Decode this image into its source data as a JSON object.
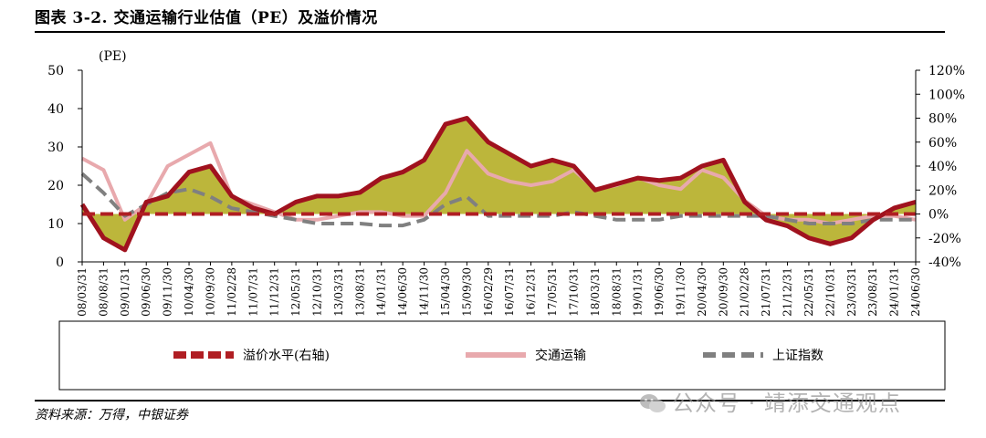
{
  "title": "图表 3-2. 交通运输行业估值（PE）及溢价情况",
  "source": "资料来源：万得，中银证券",
  "watermark": "公众号 · 靖添交通观点",
  "colors": {
    "premium_line": "#a0121e",
    "premium_fill": "#b6b02a",
    "premium_legend": "#b01e23",
    "transport": "#e8a9ad",
    "sse": "#808080",
    "text": "#000000"
  },
  "chart_data": {
    "type": "line",
    "left_axis_unit": "(PE)",
    "left_ylim": [
      0,
      50
    ],
    "left_yticks": [
      "0",
      "10",
      "20",
      "30",
      "40",
      "50"
    ],
    "right_ylim": [
      -40,
      120
    ],
    "right_yticks": [
      "-40%",
      "-20%",
      "0%",
      "20%",
      "40%",
      "60%",
      "80%",
      "100%",
      "120%"
    ],
    "x_ticklabels": [
      "08/03/31",
      "08/08/31",
      "09/01/31",
      "09/06/30",
      "09/11/30",
      "10/04/30",
      "10/09/30",
      "11/02/28",
      "11/07/31",
      "11/12/31",
      "12/05/31",
      "12/10/31",
      "13/03/31",
      "13/08/31",
      "14/01/31",
      "14/06/30",
      "14/11/30",
      "15/04/30",
      "15/09/30",
      "16/02/29",
      "16/07/31",
      "16/12/31",
      "17/05/31",
      "17/10/31",
      "18/03/31",
      "18/08/31",
      "19/01/31",
      "19/06/30",
      "19/11/30",
      "20/04/30",
      "20/09/30",
      "21/02/28",
      "21/07/31",
      "21/12/31",
      "22/05/31",
      "22/10/31",
      "23/03/31",
      "23/08/31",
      "24/01/31",
      "24/06/30"
    ],
    "legend": [
      "溢价水平(右轴)",
      "交通运输",
      "上证指数"
    ],
    "series": [
      {
        "name": "交通运输",
        "axis": "left",
        "values": [
          27,
          24,
          11,
          15,
          25,
          28,
          31,
          17,
          15,
          13,
          11,
          11,
          12,
          13,
          13,
          12,
          12,
          18,
          29,
          23,
          21,
          20,
          21,
          24,
          19,
          20,
          22,
          20,
          19,
          24,
          22,
          16,
          12,
          11,
          11,
          10,
          11,
          12,
          12,
          11
        ]
      },
      {
        "name": "上证指数",
        "axis": "left",
        "values": [
          23,
          18,
          12,
          15,
          18,
          19,
          17,
          14,
          13,
          12,
          11,
          10,
          10,
          10,
          9.5,
          9.5,
          11,
          15,
          17,
          12,
          12,
          12,
          12,
          13,
          12,
          11,
          11,
          11,
          12,
          12,
          12,
          12,
          12,
          11,
          10,
          10,
          10,
          11,
          11,
          11
        ]
      },
      {
        "name": "溢价水平(右轴)",
        "axis": "right",
        "values": [
          8,
          -20,
          -30,
          10,
          15,
          35,
          40,
          15,
          5,
          0,
          10,
          15,
          15,
          18,
          30,
          35,
          45,
          75,
          80,
          60,
          50,
          40,
          45,
          40,
          20,
          25,
          30,
          28,
          30,
          40,
          45,
          10,
          -5,
          -10,
          -20,
          -25,
          -20,
          -5,
          5,
          10
        ]
      }
    ]
  }
}
